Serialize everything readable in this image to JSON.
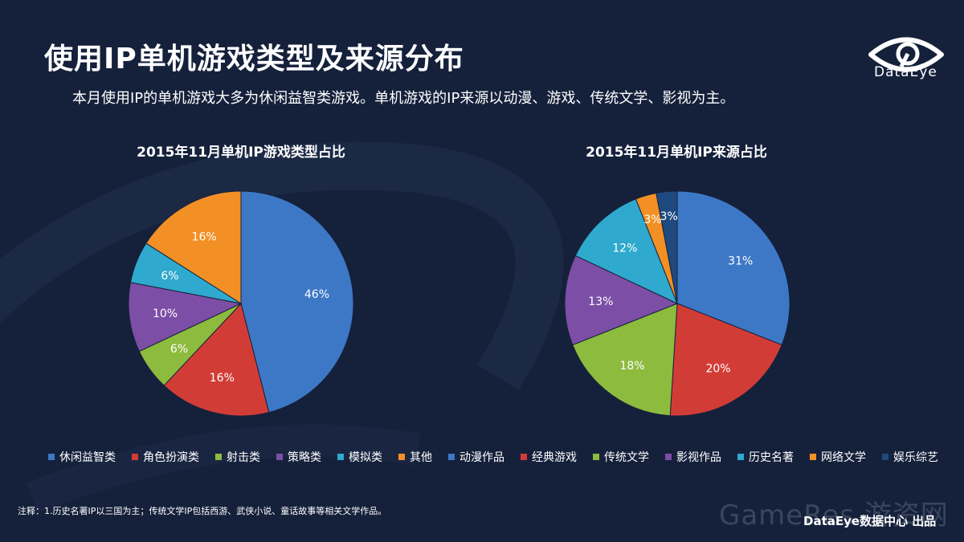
{
  "header": {
    "title": "使用IP单机游戏类型及来源分布",
    "subtitle": "本月使用IP的单机游戏大多为休闲益智类游戏。单机游戏的IP来源以动漫、游戏、传统文学、影视为主。"
  },
  "logo": {
    "text": "DataEye",
    "icon": "eye-icon"
  },
  "chart_data": [
    {
      "type": "pie",
      "title": "2015年11月单机IP游戏类型占比",
      "categories": [
        "休闲益智类",
        "角色扮演类",
        "射击类",
        "策略类",
        "模拟类",
        "其他"
      ],
      "values": [
        46,
        16,
        6,
        10,
        6,
        16
      ],
      "labels": [
        "46%",
        "16%",
        "6%",
        "10%",
        "6%",
        "16%"
      ],
      "colors": [
        "#3c78c6",
        "#d23c37",
        "#8dbb3e",
        "#7c4ea6",
        "#2fa9cd",
        "#f39025"
      ],
      "legend": "bottom"
    },
    {
      "type": "pie",
      "title": "2015年11月单机IP来源占比",
      "categories": [
        "动漫作品",
        "经典游戏",
        "传统文学",
        "影视作品",
        "历史名著",
        "网络文学",
        "娱乐综艺"
      ],
      "values": [
        31,
        20,
        18,
        13,
        12,
        3,
        3
      ],
      "labels": [
        "31%",
        "20%",
        "18%",
        "13%",
        "12%",
        "3%",
        "3%"
      ],
      "colors": [
        "#3c78c6",
        "#d23c37",
        "#8dbb3e",
        "#7c4ea6",
        "#2fa9cd",
        "#f39025",
        "#1f4a80"
      ],
      "legend": "bottom"
    }
  ],
  "footnote": "注释：1.历史名著IP以三国为主；传统文学IP包括西游、武侠小说、童话故事等相关文学作品。",
  "watermark": "GameRes 游资网",
  "credit": "DataEye数据中心 出品"
}
